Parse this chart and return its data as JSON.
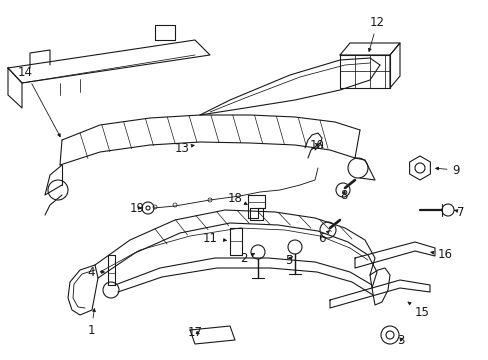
{
  "background_color": "#ffffff",
  "line_color": "#1a1a1a",
  "figsize": [
    4.89,
    3.6
  ],
  "dpi": 100,
  "fontsize": 8.5,
  "lw": 0.8
}
